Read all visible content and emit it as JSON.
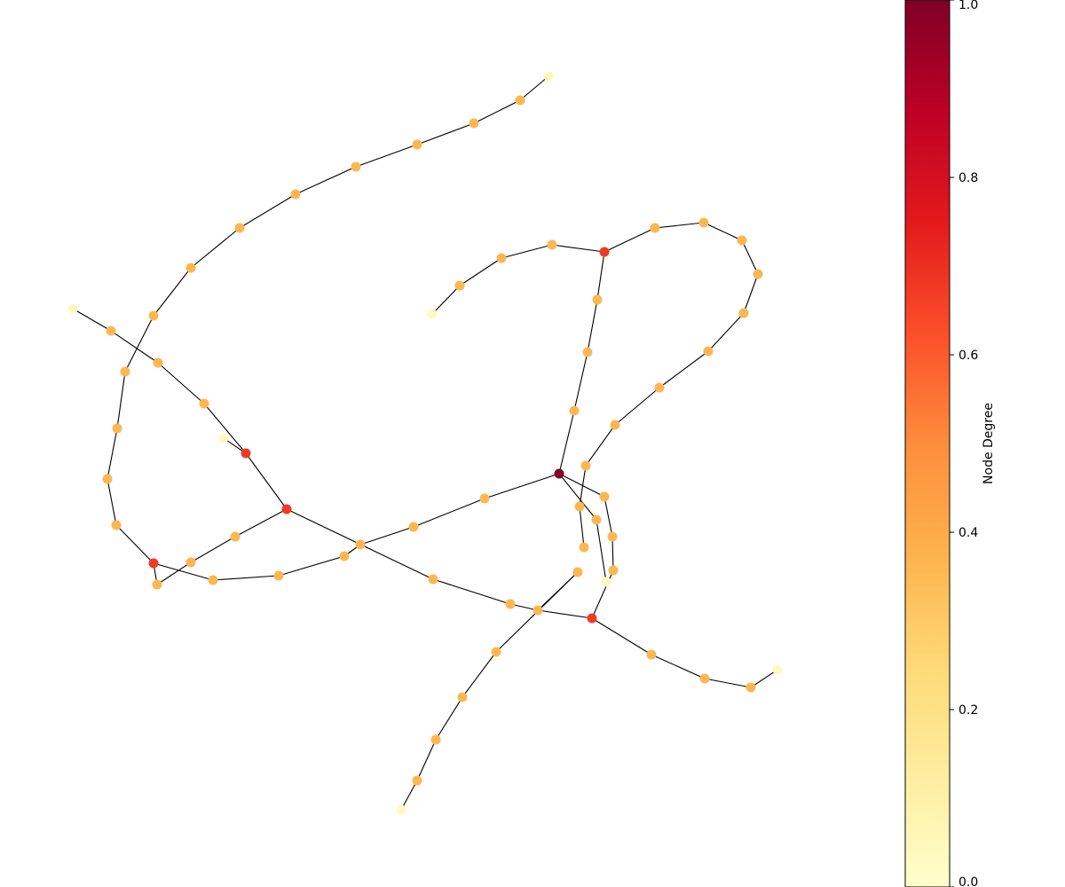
{
  "colorbar": {
    "label": "Node Degree",
    "ticks": [
      "0.0",
      "0.2",
      "0.4",
      "0.6",
      "0.8",
      "1.0"
    ],
    "tick_values": [
      0.0,
      0.2,
      0.4,
      0.6,
      0.8,
      1.0
    ],
    "colormap": "YlOrRd",
    "range": [
      0,
      1
    ]
  },
  "colors": {
    "degree_1": "#fffac0",
    "degree_2": "#fdb751",
    "degree_3": "#f03a26",
    "degree_4": "#850026",
    "edge": "#000000"
  }
}
